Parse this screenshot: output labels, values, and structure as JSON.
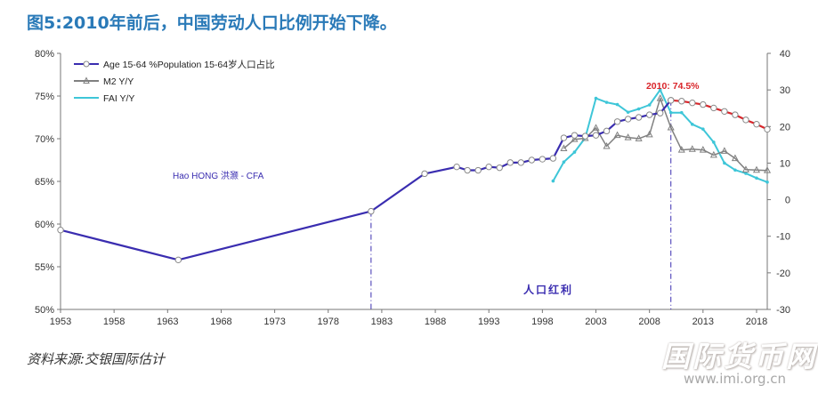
{
  "page_title": "图5:2010年前后，中国劳动人口比例开始下降。",
  "source_note": "资料来源:交银国际估计",
  "watermark": {
    "main": "国际货币网",
    "url": "www.imi.org.cn"
  },
  "colors": {
    "age": "#3a2db0",
    "age_forecast": "#d9252a",
    "m2": "#808080",
    "fai": "#3ec6d8",
    "title": "#2a7ab8"
  },
  "chart_data": {
    "type": "line",
    "title": "",
    "x_ticks": [
      "1953",
      "1958",
      "1963",
      "1968",
      "1973",
      "1978",
      "1983",
      "1988",
      "1993",
      "1998",
      "2003",
      "2008",
      "2013",
      "2018"
    ],
    "xlim": [
      1953,
      2019
    ],
    "y_left": {
      "ticks": [
        "80%",
        "75%",
        "70%",
        "65%",
        "60%",
        "55%",
        "50%"
      ],
      "range": [
        50,
        80
      ]
    },
    "y_right": {
      "ticks": [
        "40",
        "30",
        "20",
        "10",
        "0",
        "-10",
        "-20",
        "-30"
      ],
      "range": [
        -30,
        40
      ]
    },
    "legend": {
      "placement": "top-left",
      "entries": [
        "Age 15-64 %Population 15-64岁人口占比",
        "M2 Y/Y",
        "FAI Y/Y"
      ]
    },
    "annotations": {
      "peak_label": "2010: 74.5%",
      "dividend_label": "人口红利",
      "author_label": "Hao HONG 洪灏 - CFA",
      "vlines": [
        1982,
        2010
      ]
    },
    "series": [
      {
        "name": "Age 15-64 %Population 15-64岁人口占比",
        "axis": "left",
        "x": [
          1953,
          1964,
          1982,
          1987,
          1990,
          1991,
          1992,
          1993,
          1994,
          1995,
          1996,
          1997,
          1998,
          1999,
          2000,
          2001,
          2002,
          2003,
          2004,
          2005,
          2006,
          2007,
          2008,
          2009,
          2010
        ],
        "y": [
          59.3,
          55.8,
          61.5,
          65.9,
          66.7,
          66.3,
          66.3,
          66.7,
          66.6,
          67.2,
          67.2,
          67.5,
          67.6,
          67.7,
          70.1,
          70.4,
          70.3,
          70.4,
          70.9,
          72.0,
          72.3,
          72.5,
          72.8,
          73.0,
          74.5
        ]
      },
      {
        "name": "Age 15-64 forecast",
        "axis": "left",
        "x": [
          2010,
          2011,
          2012,
          2013,
          2014,
          2015,
          2016,
          2017,
          2018,
          2019
        ],
        "y": [
          74.5,
          74.4,
          74.2,
          74.0,
          73.6,
          73.2,
          72.8,
          72.2,
          71.7,
          71.1
        ]
      },
      {
        "name": "M2 Y/Y",
        "axis": "right",
        "x": [
          2000,
          2001,
          2002,
          2003,
          2004,
          2005,
          2006,
          2007,
          2008,
          2009,
          2010,
          2011,
          2012,
          2013,
          2014,
          2015,
          2016,
          2017,
          2018,
          2019
        ],
        "y": [
          14.0,
          16.5,
          16.8,
          19.6,
          14.6,
          17.6,
          17.0,
          16.7,
          17.8,
          27.7,
          19.7,
          13.6,
          13.8,
          13.6,
          12.2,
          13.3,
          11.3,
          8.2,
          8.1,
          8.0
        ]
      },
      {
        "name": "FAI Y/Y",
        "axis": "right",
        "x": [
          1999,
          2000,
          2001,
          2002,
          2003,
          2004,
          2005,
          2006,
          2007,
          2008,
          2009,
          2010,
          2011,
          2012,
          2013,
          2014,
          2015,
          2016,
          2017,
          2018,
          2019
        ],
        "y": [
          5.1,
          10.3,
          13.0,
          16.9,
          27.7,
          26.6,
          26.0,
          23.9,
          24.8,
          25.9,
          30.0,
          23.8,
          23.8,
          20.6,
          19.3,
          15.7,
          10.0,
          8.1,
          7.2,
          5.9,
          4.8
        ]
      }
    ]
  }
}
